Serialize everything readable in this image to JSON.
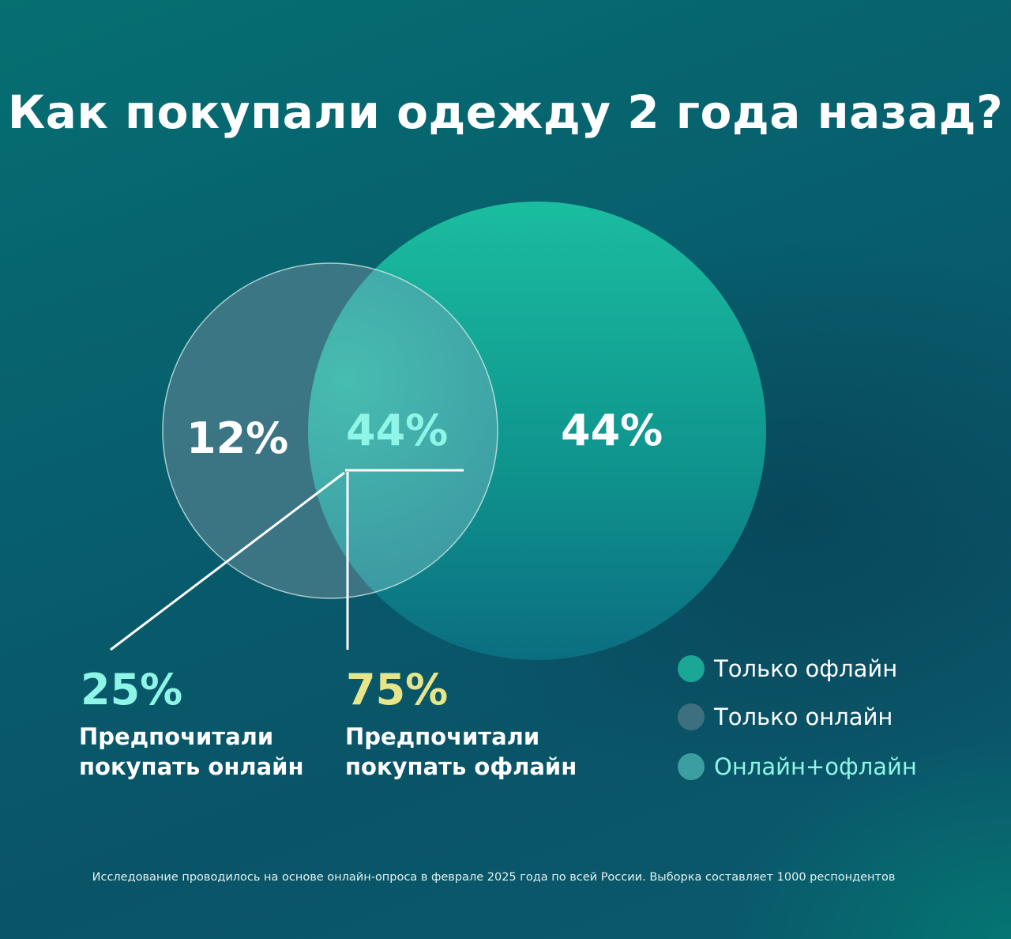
{
  "chart_data": {
    "type": "venn",
    "title": "Как покупали одежду 2 года назад?",
    "sets": [
      {
        "name": "Только офлайн",
        "value": 44,
        "label": "44%",
        "color": "#14b39b"
      },
      {
        "name": "Только онлайн",
        "value": 12,
        "label": "12%",
        "color": "#3e7382"
      },
      {
        "name": "Онлайн+офлайн",
        "value": 44,
        "label": "44%",
        "color": "#3fb0ab"
      }
    ],
    "stats": [
      {
        "value": "25%",
        "label_line1": "Предпочитали",
        "label_line2": "покупать онлайн",
        "color": "#8ff5e6"
      },
      {
        "value": "75%",
        "label_line1": "Предпочитали",
        "label_line2": "покупать офлайн",
        "color": "#e6e58a"
      }
    ],
    "legend": [
      {
        "label": "Только офлайн",
        "color": "#1aa795",
        "text_color": "#ffffff"
      },
      {
        "label": "Только онлайн",
        "color": "#3e6f7f",
        "text_color": "#ffffff"
      },
      {
        "label": "Онлайн+офлайн",
        "color": "#3b9fa2",
        "text_color": "#8ff5e6"
      }
    ],
    "legend_position": "bottom-right",
    "footnote": "Исследование проводилось на основе онлайн-опроса в феврале 2025 года по всей России. Выборка составляет 1000 респондентов"
  }
}
